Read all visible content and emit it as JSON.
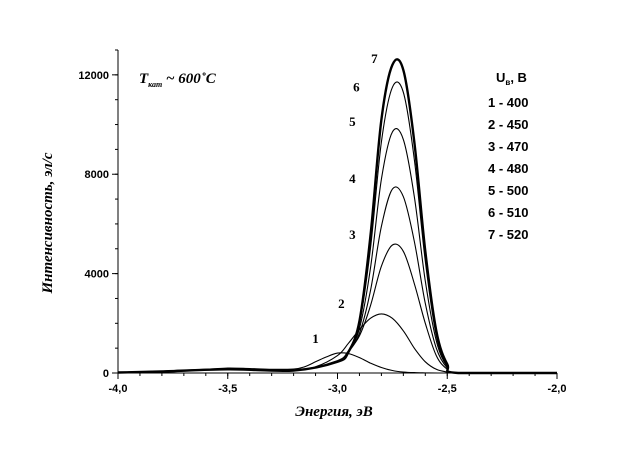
{
  "chart_data": {
    "type": "line",
    "xlabel": "Энергия, эВ",
    "ylabel": "Интенсивность, эл/с",
    "xlim": [
      -4.0,
      -2.0
    ],
    "ylim": [
      0,
      13000
    ],
    "x_ticks": [
      -4.0,
      -3.5,
      -3.0,
      -2.5,
      -2.0
    ],
    "x_tick_labels": [
      "-4,0",
      "-3,5",
      "-3,0",
      "-2,5",
      "-2,0"
    ],
    "x_minor_step": 0.1,
    "y_ticks": [
      0,
      4000,
      8000,
      12000
    ],
    "y_tick_labels": [
      "0",
      "4000",
      "8000",
      "12000"
    ],
    "y_minor_step": 1000,
    "grid": false,
    "annotation": {
      "symbol": "T",
      "subscript": "кат",
      "text": " ~ 600˚С"
    },
    "legend": {
      "title_main": "U",
      "title_sub": "в",
      "title_rest": ", В",
      "placement": "top-right",
      "entries": [
        "1 - 400",
        "2 - 450",
        "3 - 470",
        "4 - 480",
        "5 - 500",
        "6 - 510",
        "7 - 520"
      ]
    },
    "series": [
      {
        "label": "1",
        "x": [
          -4.0,
          -3.8,
          -3.6,
          -3.5,
          -3.4,
          -3.3,
          -3.2,
          -3.15,
          -3.1,
          -3.05,
          -3.0,
          -2.95,
          -2.9,
          -2.85,
          -2.8,
          -2.75,
          -2.7,
          -2.65,
          -2.6,
          -2.5,
          -2.0
        ],
        "y": [
          30,
          80,
          150,
          200,
          180,
          150,
          160,
          250,
          450,
          650,
          800,
          780,
          620,
          400,
          220,
          100,
          40,
          15,
          5,
          0,
          0
        ],
        "bold": false
      },
      {
        "label": "2",
        "x": [
          -4.0,
          -3.8,
          -3.5,
          -3.2,
          -3.1,
          -3.0,
          -2.95,
          -2.9,
          -2.85,
          -2.8,
          -2.75,
          -2.7,
          -2.65,
          -2.6,
          -2.55,
          -2.5,
          -2.45,
          -2.0
        ],
        "y": [
          20,
          60,
          150,
          120,
          250,
          700,
          1200,
          1750,
          2200,
          2380,
          2200,
          1700,
          1000,
          450,
          150,
          40,
          0,
          0
        ],
        "bold": false
      },
      {
        "label": "3",
        "x": [
          -4.0,
          -3.8,
          -3.5,
          -3.2,
          -3.0,
          -2.95,
          -2.9,
          -2.85,
          -2.8,
          -2.75,
          -2.7,
          -2.65,
          -2.6,
          -2.55,
          -2.5,
          -2.45,
          -2.0
        ],
        "y": [
          20,
          60,
          150,
          100,
          500,
          900,
          1500,
          2700,
          4300,
          5150,
          4900,
          3600,
          2000,
          700,
          150,
          0,
          0
        ],
        "bold": false
      },
      {
        "label": "4",
        "x": [
          -4.0,
          -3.8,
          -3.5,
          -3.2,
          -3.0,
          -2.95,
          -2.9,
          -2.85,
          -2.8,
          -2.75,
          -2.7,
          -2.65,
          -2.6,
          -2.55,
          -2.5,
          -2.45,
          -2.0
        ],
        "y": [
          20,
          60,
          150,
          100,
          450,
          850,
          1600,
          3300,
          5900,
          7400,
          7100,
          5300,
          2800,
          1000,
          200,
          0,
          0
        ],
        "bold": false
      },
      {
        "label": "5",
        "x": [
          -4.0,
          -3.8,
          -3.5,
          -3.2,
          -3.0,
          -2.95,
          -2.9,
          -2.85,
          -2.8,
          -2.75,
          -2.7,
          -2.65,
          -2.6,
          -2.55,
          -2.5,
          -2.45,
          -2.0
        ],
        "y": [
          20,
          60,
          150,
          100,
          450,
          850,
          1800,
          4200,
          7800,
          9700,
          9400,
          7100,
          3700,
          1300,
          250,
          0,
          0
        ],
        "bold": false
      },
      {
        "label": "6",
        "x": [
          -4.0,
          -3.8,
          -3.5,
          -3.2,
          -3.0,
          -2.95,
          -2.9,
          -2.85,
          -2.8,
          -2.75,
          -2.7,
          -2.65,
          -2.6,
          -2.55,
          -2.5,
          -2.45,
          -2.0
        ],
        "y": [
          20,
          60,
          150,
          100,
          450,
          850,
          2000,
          5000,
          9300,
          11500,
          11300,
          8600,
          4500,
          1500,
          300,
          0,
          0
        ],
        "bold": false
      },
      {
        "label": "7",
        "x": [
          -4.0,
          -3.8,
          -3.5,
          -3.2,
          -3.0,
          -2.95,
          -2.9,
          -2.85,
          -2.8,
          -2.75,
          -2.7,
          -2.65,
          -2.6,
          -2.55,
          -2.5,
          -2.45,
          -2.0
        ],
        "y": [
          20,
          60,
          150,
          100,
          450,
          850,
          2100,
          5500,
          10200,
          12400,
          12200,
          9300,
          4900,
          1700,
          350,
          0,
          0
        ],
        "bold": true
      }
    ]
  }
}
